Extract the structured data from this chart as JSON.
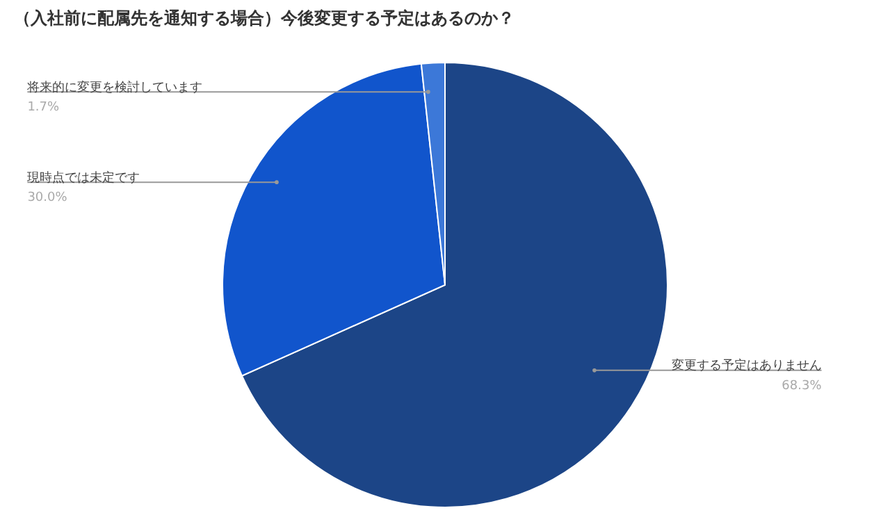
{
  "chart_data": {
    "type": "pie",
    "title": "（入社前に配属先を通知する場合）今後変更する予定はあるのか？",
    "categories": [
      "変更する予定はありません",
      "現時点では未定です",
      "将来的に変更を検討しています"
    ],
    "values": [
      68.3,
      30.0,
      1.7
    ],
    "colors": [
      "#1c4587",
      "#1155cc",
      "#3c78d8"
    ],
    "value_labels": [
      "68.3%",
      "30.0%",
      "1.7%"
    ]
  }
}
